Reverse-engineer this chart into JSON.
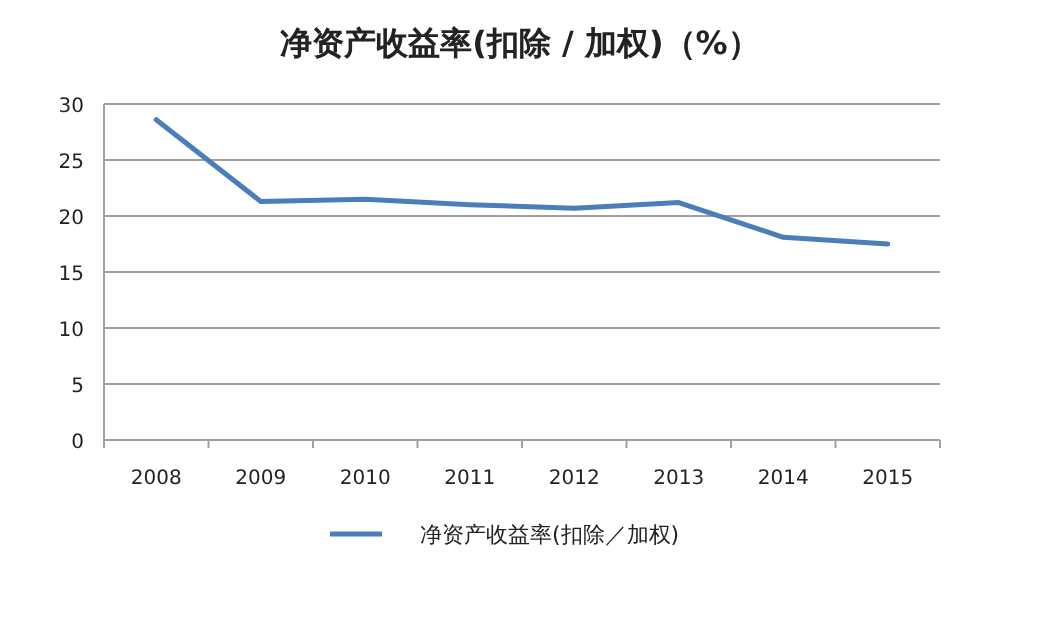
{
  "chart_data": {
    "type": "line",
    "title": "净资产收益率(扣除 / 加权)（%）",
    "categories": [
      "2008",
      "2009",
      "2010",
      "2011",
      "2012",
      "2013",
      "2014",
      "2015"
    ],
    "series": [
      {
        "name": "净资产收益率(扣除／加权)",
        "color": "#4a7ebb",
        "values": [
          28.6,
          21.3,
          21.5,
          21.0,
          20.7,
          21.2,
          18.1,
          17.5
        ]
      }
    ],
    "ylim": [
      0,
      30
    ],
    "yticks": [
      0,
      5,
      10,
      15,
      20,
      25,
      30
    ],
    "grid": "y",
    "legend": "bottom",
    "marker": "none",
    "line_style": "solid"
  }
}
